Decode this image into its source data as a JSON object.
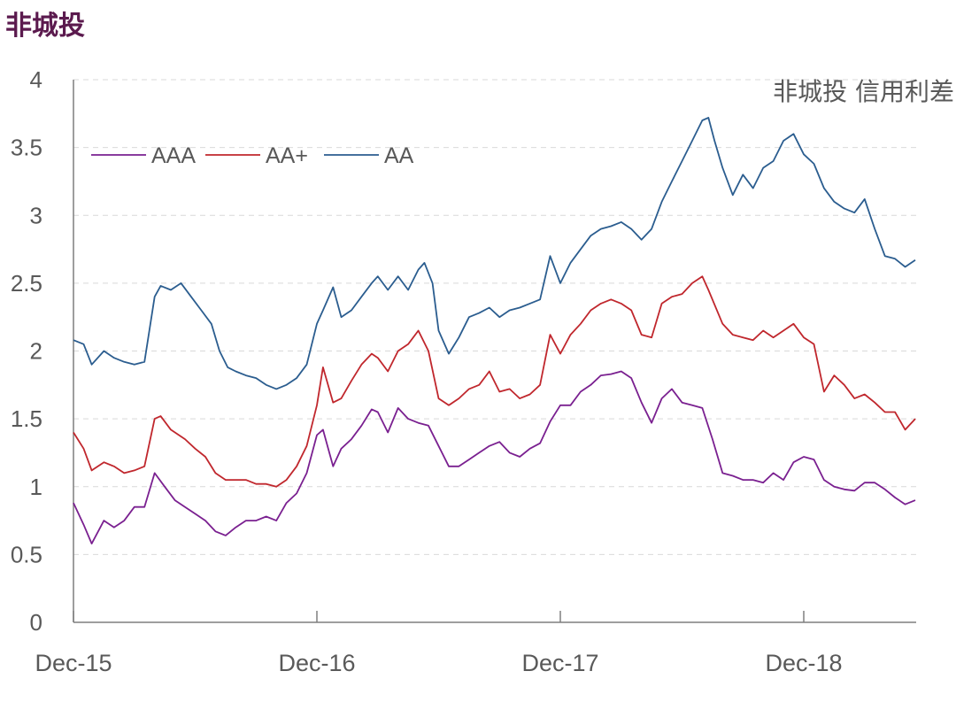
{
  "page_title": "非城投",
  "chart_data": {
    "type": "line",
    "title": "",
    "annotation": "非城投 信用利差",
    "xlabel": "",
    "ylabel": "",
    "ylim": [
      0,
      4
    ],
    "yticks": [
      "0",
      "0.5",
      "1",
      "1.5",
      "2",
      "2.5",
      "3",
      "3.5",
      "4"
    ],
    "xticks": [
      {
        "label": "Dec-15",
        "t": 0
      },
      {
        "label": "Dec-16",
        "t": 12
      },
      {
        "label": "Dec-17",
        "t": 24
      },
      {
        "label": "Dec-18",
        "t": 36
      }
    ],
    "x_range_months": [
      0,
      41.5
    ],
    "grid": "horizontal dashed",
    "legend": "top-left",
    "series": [
      {
        "name": "AAA",
        "color": "#7a2090",
        "points": [
          [
            0,
            0.88
          ],
          [
            0.5,
            0.72
          ],
          [
            0.9,
            0.58
          ],
          [
            1.5,
            0.75
          ],
          [
            2,
            0.7
          ],
          [
            2.5,
            0.75
          ],
          [
            3,
            0.85
          ],
          [
            3.5,
            0.85
          ],
          [
            4,
            1.1
          ],
          [
            4.5,
            1.0
          ],
          [
            5,
            0.9
          ],
          [
            5.5,
            0.85
          ],
          [
            6,
            0.8
          ],
          [
            6.5,
            0.75
          ],
          [
            7,
            0.67
          ],
          [
            7.5,
            0.64
          ],
          [
            8,
            0.7
          ],
          [
            8.5,
            0.75
          ],
          [
            9,
            0.75
          ],
          [
            9.5,
            0.78
          ],
          [
            10,
            0.75
          ],
          [
            10.5,
            0.88
          ],
          [
            11,
            0.95
          ],
          [
            11.5,
            1.1
          ],
          [
            12,
            1.38
          ],
          [
            12.3,
            1.42
          ],
          [
            12.8,
            1.15
          ],
          [
            13.2,
            1.28
          ],
          [
            13.7,
            1.35
          ],
          [
            14.2,
            1.45
          ],
          [
            14.7,
            1.57
          ],
          [
            15,
            1.55
          ],
          [
            15.5,
            1.4
          ],
          [
            16,
            1.58
          ],
          [
            16.5,
            1.5
          ],
          [
            17,
            1.47
          ],
          [
            17.5,
            1.45
          ],
          [
            18,
            1.3
          ],
          [
            18.5,
            1.15
          ],
          [
            19,
            1.15
          ],
          [
            19.5,
            1.2
          ],
          [
            20,
            1.25
          ],
          [
            20.5,
            1.3
          ],
          [
            21,
            1.33
          ],
          [
            21.5,
            1.25
          ],
          [
            22,
            1.22
          ],
          [
            22.5,
            1.28
          ],
          [
            23,
            1.32
          ],
          [
            23.5,
            1.48
          ],
          [
            24,
            1.6
          ],
          [
            24.5,
            1.6
          ],
          [
            25,
            1.7
          ],
          [
            25.5,
            1.75
          ],
          [
            26,
            1.82
          ],
          [
            26.5,
            1.83
          ],
          [
            27,
            1.85
          ],
          [
            27.5,
            1.8
          ],
          [
            28,
            1.62
          ],
          [
            28.5,
            1.47
          ],
          [
            29,
            1.65
          ],
          [
            29.5,
            1.72
          ],
          [
            30,
            1.62
          ],
          [
            30.5,
            1.6
          ],
          [
            31,
            1.58
          ],
          [
            31.5,
            1.35
          ],
          [
            32,
            1.1
          ],
          [
            32.5,
            1.08
          ],
          [
            33,
            1.05
          ],
          [
            33.5,
            1.05
          ],
          [
            34,
            1.03
          ],
          [
            34.5,
            1.1
          ],
          [
            35,
            1.05
          ],
          [
            35.5,
            1.18
          ],
          [
            36,
            1.22
          ],
          [
            36.5,
            1.2
          ],
          [
            37,
            1.05
          ],
          [
            37.5,
            1.0
          ],
          [
            38,
            0.98
          ],
          [
            38.5,
            0.97
          ],
          [
            39,
            1.03
          ],
          [
            39.5,
            1.03
          ],
          [
            40,
            0.98
          ],
          [
            40.5,
            0.92
          ],
          [
            41,
            0.87
          ],
          [
            41.5,
            0.9
          ]
        ]
      },
      {
        "name": "AA+",
        "color": "#c0272d",
        "points": [
          [
            0,
            1.4
          ],
          [
            0.5,
            1.28
          ],
          [
            0.9,
            1.12
          ],
          [
            1.5,
            1.18
          ],
          [
            2,
            1.15
          ],
          [
            2.5,
            1.1
          ],
          [
            3,
            1.12
          ],
          [
            3.5,
            1.15
          ],
          [
            4,
            1.5
          ],
          [
            4.3,
            1.52
          ],
          [
            4.8,
            1.42
          ],
          [
            5.5,
            1.35
          ],
          [
            6,
            1.28
          ],
          [
            6.5,
            1.22
          ],
          [
            7,
            1.1
          ],
          [
            7.5,
            1.05
          ],
          [
            8,
            1.05
          ],
          [
            8.5,
            1.05
          ],
          [
            9,
            1.02
          ],
          [
            9.5,
            1.02
          ],
          [
            10,
            1.0
          ],
          [
            10.5,
            1.05
          ],
          [
            11,
            1.15
          ],
          [
            11.5,
            1.3
          ],
          [
            12,
            1.6
          ],
          [
            12.3,
            1.88
          ],
          [
            12.8,
            1.62
          ],
          [
            13.2,
            1.65
          ],
          [
            13.7,
            1.78
          ],
          [
            14.2,
            1.9
          ],
          [
            14.7,
            1.98
          ],
          [
            15,
            1.95
          ],
          [
            15.5,
            1.85
          ],
          [
            16,
            2.0
          ],
          [
            16.5,
            2.05
          ],
          [
            17,
            2.15
          ],
          [
            17.5,
            2.0
          ],
          [
            18,
            1.65
          ],
          [
            18.5,
            1.6
          ],
          [
            19,
            1.65
          ],
          [
            19.5,
            1.72
          ],
          [
            20,
            1.75
          ],
          [
            20.5,
            1.85
          ],
          [
            21,
            1.7
          ],
          [
            21.5,
            1.72
          ],
          [
            22,
            1.65
          ],
          [
            22.5,
            1.68
          ],
          [
            23,
            1.75
          ],
          [
            23.5,
            2.12
          ],
          [
            24,
            1.98
          ],
          [
            24.5,
            2.12
          ],
          [
            25,
            2.2
          ],
          [
            25.5,
            2.3
          ],
          [
            26,
            2.35
          ],
          [
            26.5,
            2.38
          ],
          [
            27,
            2.35
          ],
          [
            27.5,
            2.3
          ],
          [
            28,
            2.12
          ],
          [
            28.5,
            2.1
          ],
          [
            29,
            2.35
          ],
          [
            29.5,
            2.4
          ],
          [
            30,
            2.42
          ],
          [
            30.5,
            2.5
          ],
          [
            31,
            2.55
          ],
          [
            31.3,
            2.45
          ],
          [
            32,
            2.2
          ],
          [
            32.5,
            2.12
          ],
          [
            33,
            2.1
          ],
          [
            33.5,
            2.08
          ],
          [
            34,
            2.15
          ],
          [
            34.5,
            2.1
          ],
          [
            35,
            2.15
          ],
          [
            35.5,
            2.2
          ],
          [
            36,
            2.1
          ],
          [
            36.5,
            2.05
          ],
          [
            37,
            1.7
          ],
          [
            37.5,
            1.82
          ],
          [
            38,
            1.75
          ],
          [
            38.5,
            1.65
          ],
          [
            39,
            1.68
          ],
          [
            39.5,
            1.62
          ],
          [
            40,
            1.55
          ],
          [
            40.5,
            1.55
          ],
          [
            41,
            1.42
          ],
          [
            41.5,
            1.5
          ]
        ]
      },
      {
        "name": "AA",
        "color": "#2b5d8f",
        "points": [
          [
            0,
            2.08
          ],
          [
            0.5,
            2.05
          ],
          [
            0.9,
            1.9
          ],
          [
            1.5,
            2.0
          ],
          [
            2,
            1.95
          ],
          [
            2.5,
            1.92
          ],
          [
            3,
            1.9
          ],
          [
            3.5,
            1.92
          ],
          [
            4,
            2.4
          ],
          [
            4.3,
            2.48
          ],
          [
            4.8,
            2.45
          ],
          [
            5.3,
            2.5
          ],
          [
            5.8,
            2.4
          ],
          [
            6.3,
            2.3
          ],
          [
            6.8,
            2.2
          ],
          [
            7.2,
            2.0
          ],
          [
            7.6,
            1.88
          ],
          [
            8,
            1.85
          ],
          [
            8.5,
            1.82
          ],
          [
            9,
            1.8
          ],
          [
            9.5,
            1.75
          ],
          [
            10,
            1.72
          ],
          [
            10.5,
            1.75
          ],
          [
            11,
            1.8
          ],
          [
            11.5,
            1.9
          ],
          [
            12,
            2.2
          ],
          [
            12.3,
            2.3
          ],
          [
            12.8,
            2.47
          ],
          [
            13.2,
            2.25
          ],
          [
            13.7,
            2.3
          ],
          [
            14.2,
            2.4
          ],
          [
            14.7,
            2.5
          ],
          [
            15,
            2.55
          ],
          [
            15.5,
            2.45
          ],
          [
            16,
            2.55
          ],
          [
            16.5,
            2.45
          ],
          [
            17,
            2.6
          ],
          [
            17.3,
            2.65
          ],
          [
            17.7,
            2.5
          ],
          [
            18,
            2.15
          ],
          [
            18.5,
            1.98
          ],
          [
            19,
            2.1
          ],
          [
            19.5,
            2.25
          ],
          [
            20,
            2.28
          ],
          [
            20.5,
            2.32
          ],
          [
            21,
            2.25
          ],
          [
            21.5,
            2.3
          ],
          [
            22,
            2.32
          ],
          [
            22.5,
            2.35
          ],
          [
            23,
            2.38
          ],
          [
            23.5,
            2.7
          ],
          [
            24,
            2.5
          ],
          [
            24.5,
            2.65
          ],
          [
            25,
            2.75
          ],
          [
            25.5,
            2.85
          ],
          [
            26,
            2.9
          ],
          [
            26.5,
            2.92
          ],
          [
            27,
            2.95
          ],
          [
            27.5,
            2.9
          ],
          [
            28,
            2.82
          ],
          [
            28.5,
            2.9
          ],
          [
            29,
            3.1
          ],
          [
            29.5,
            3.25
          ],
          [
            30,
            3.4
          ],
          [
            30.5,
            3.55
          ],
          [
            31,
            3.7
          ],
          [
            31.3,
            3.72
          ],
          [
            31.6,
            3.55
          ],
          [
            32,
            3.35
          ],
          [
            32.5,
            3.15
          ],
          [
            33,
            3.3
          ],
          [
            33.5,
            3.2
          ],
          [
            34,
            3.35
          ],
          [
            34.5,
            3.4
          ],
          [
            35,
            3.55
          ],
          [
            35.5,
            3.6
          ],
          [
            36,
            3.45
          ],
          [
            36.5,
            3.38
          ],
          [
            37,
            3.2
          ],
          [
            37.5,
            3.1
          ],
          [
            38,
            3.05
          ],
          [
            38.5,
            3.02
          ],
          [
            39,
            3.12
          ],
          [
            39.5,
            2.9
          ],
          [
            40,
            2.7
          ],
          [
            40.5,
            2.68
          ],
          [
            41,
            2.62
          ],
          [
            41.5,
            2.67
          ]
        ]
      }
    ]
  }
}
